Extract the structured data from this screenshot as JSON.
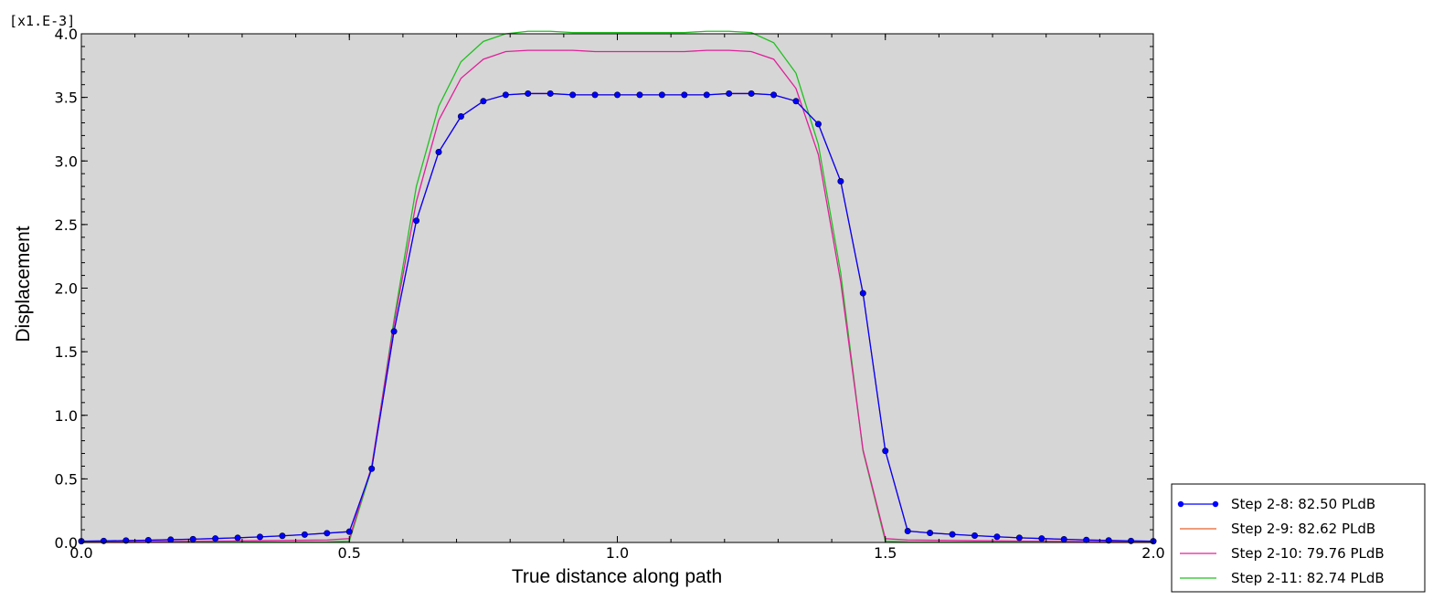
{
  "chart_data": {
    "type": "line",
    "title": "",
    "xlabel": "True distance along path",
    "ylabel": "Displacement",
    "y_multiplier": "[x1.E-3]",
    "xlim": [
      0.0,
      2.0
    ],
    "ylim": [
      0.0,
      4.0
    ],
    "x_ticks": [
      "0.0",
      "0.5",
      "1.0",
      "1.5",
      "2.0"
    ],
    "y_ticks": [
      "0.0",
      "0.5",
      "1.0",
      "1.5",
      "2.0",
      "2.5",
      "3.0",
      "3.5",
      "4.0"
    ],
    "grid": false,
    "legend_position": "bottom-right",
    "series": [
      {
        "name": "Step 2-8: 82.50 PLdB",
        "color": "#0000ff",
        "markers": true,
        "x": [
          0.0,
          0.0417,
          0.0833,
          0.125,
          0.1667,
          0.2083,
          0.25,
          0.2917,
          0.3333,
          0.375,
          0.4167,
          0.4583,
          0.5,
          0.5417,
          0.5833,
          0.625,
          0.6667,
          0.7083,
          0.75,
          0.7917,
          0.8333,
          0.875,
          0.9167,
          0.9583,
          1.0,
          1.0417,
          1.0833,
          1.125,
          1.1667,
          1.2083,
          1.25,
          1.2917,
          1.3333,
          1.375,
          1.4167,
          1.4583,
          1.5,
          1.5417,
          1.5833,
          1.625,
          1.6667,
          1.7083,
          1.75,
          1.7917,
          1.8333,
          1.875,
          1.9167,
          1.9583,
          2.0
        ],
        "y": [
          0.01,
          0.012,
          0.015,
          0.018,
          0.022,
          0.026,
          0.031,
          0.037,
          0.044,
          0.052,
          0.062,
          0.073,
          0.085,
          0.58,
          1.66,
          2.53,
          3.07,
          3.35,
          3.47,
          3.52,
          3.53,
          3.53,
          3.52,
          3.52,
          3.52,
          3.52,
          3.52,
          3.52,
          3.52,
          3.53,
          3.53,
          3.52,
          3.47,
          3.29,
          2.84,
          1.96,
          0.72,
          0.09,
          0.075,
          0.064,
          0.054,
          0.045,
          0.037,
          0.031,
          0.025,
          0.02,
          0.016,
          0.012,
          0.01
        ]
      },
      {
        "name": "Step 2-9: 82.62 PLdB",
        "color": "#e8622c",
        "markers": false,
        "x": [
          0.0,
          0.0417,
          0.0833,
          0.125,
          0.1667,
          0.2083,
          0.25,
          0.2917,
          0.3333,
          0.375,
          0.4167,
          0.4583,
          0.5,
          0.5417,
          0.5833,
          0.625,
          0.6667,
          0.7083,
          0.75,
          0.7917,
          0.8333,
          0.875,
          0.9167,
          0.9583,
          1.0,
          1.0417,
          1.0833,
          1.125,
          1.1667,
          1.2083,
          1.25,
          1.2917,
          1.3333,
          1.375,
          1.4167,
          1.4583,
          1.5,
          1.5417,
          1.5833,
          1.625,
          1.6667,
          1.7083,
          1.75,
          1.7917,
          1.8333,
          1.875,
          1.9167,
          1.9583,
          2.0
        ],
        "y": [
          0.01,
          0.012,
          0.015,
          0.018,
          0.022,
          0.026,
          0.031,
          0.037,
          0.044,
          0.052,
          0.062,
          0.073,
          0.085,
          0.58,
          1.66,
          2.53,
          3.07,
          3.35,
          3.47,
          3.52,
          3.53,
          3.53,
          3.52,
          3.52,
          3.52,
          3.52,
          3.52,
          3.52,
          3.52,
          3.53,
          3.53,
          3.52,
          3.47,
          3.29,
          2.84,
          1.96,
          0.72,
          0.09,
          0.075,
          0.064,
          0.054,
          0.045,
          0.037,
          0.031,
          0.025,
          0.02,
          0.016,
          0.012,
          0.01
        ]
      },
      {
        "name": "Step 2-10: 79.76 PLdB",
        "color": "#e0209a",
        "markers": false,
        "x": [
          0.0,
          0.0417,
          0.0833,
          0.125,
          0.1667,
          0.2083,
          0.25,
          0.2917,
          0.3333,
          0.375,
          0.4167,
          0.4583,
          0.5,
          0.5417,
          0.5833,
          0.625,
          0.6667,
          0.7083,
          0.75,
          0.7917,
          0.8333,
          0.875,
          0.9167,
          0.9583,
          1.0,
          1.0417,
          1.0833,
          1.125,
          1.1667,
          1.2083,
          1.25,
          1.2917,
          1.3333,
          1.375,
          1.4167,
          1.4583,
          1.5,
          1.5417,
          1.5833,
          1.625,
          1.6667,
          1.7083,
          1.75,
          1.7917,
          1.8333,
          1.875,
          1.9167,
          1.9583,
          2.0
        ],
        "y": [
          0.005,
          0.006,
          0.007,
          0.008,
          0.009,
          0.01,
          0.011,
          0.012,
          0.014,
          0.016,
          0.018,
          0.02,
          0.03,
          0.6,
          1.72,
          2.68,
          3.32,
          3.65,
          3.8,
          3.86,
          3.87,
          3.87,
          3.87,
          3.86,
          3.86,
          3.86,
          3.86,
          3.86,
          3.87,
          3.87,
          3.86,
          3.8,
          3.57,
          3.05,
          2.05,
          0.73,
          0.03,
          0.02,
          0.018,
          0.016,
          0.014,
          0.012,
          0.011,
          0.01,
          0.009,
          0.008,
          0.007,
          0.006,
          0.005
        ]
      },
      {
        "name": "Step 2-11: 82.74 PLdB",
        "color": "#20c020",
        "markers": false,
        "x": [
          0.0,
          0.0417,
          0.0833,
          0.125,
          0.1667,
          0.2083,
          0.25,
          0.2917,
          0.3333,
          0.375,
          0.4167,
          0.4583,
          0.5,
          0.5417,
          0.5833,
          0.625,
          0.6667,
          0.7083,
          0.75,
          0.7917,
          0.8333,
          0.875,
          0.9167,
          0.9583,
          1.0,
          1.0417,
          1.0833,
          1.125,
          1.1667,
          1.2083,
          1.25,
          1.2917,
          1.3333,
          1.375,
          1.4167,
          1.4583,
          1.5,
          1.5417,
          1.5833,
          1.625,
          1.6667,
          1.7083,
          1.75,
          1.7917,
          1.8333,
          1.875,
          1.9167,
          1.9583,
          2.0
        ],
        "y": [
          0.0,
          0.0,
          0.0,
          0.001,
          0.001,
          0.001,
          0.002,
          0.002,
          0.003,
          0.003,
          0.004,
          0.005,
          0.01,
          0.58,
          1.75,
          2.8,
          3.43,
          3.78,
          3.94,
          4.0,
          4.02,
          4.02,
          4.01,
          4.01,
          4.01,
          4.01,
          4.01,
          4.01,
          4.02,
          4.02,
          4.01,
          3.93,
          3.69,
          3.13,
          2.12,
          0.72,
          0.01,
          0.005,
          0.004,
          0.003,
          0.003,
          0.002,
          0.002,
          0.001,
          0.001,
          0.001,
          0.0,
          0.0,
          0.0
        ]
      }
    ]
  }
}
